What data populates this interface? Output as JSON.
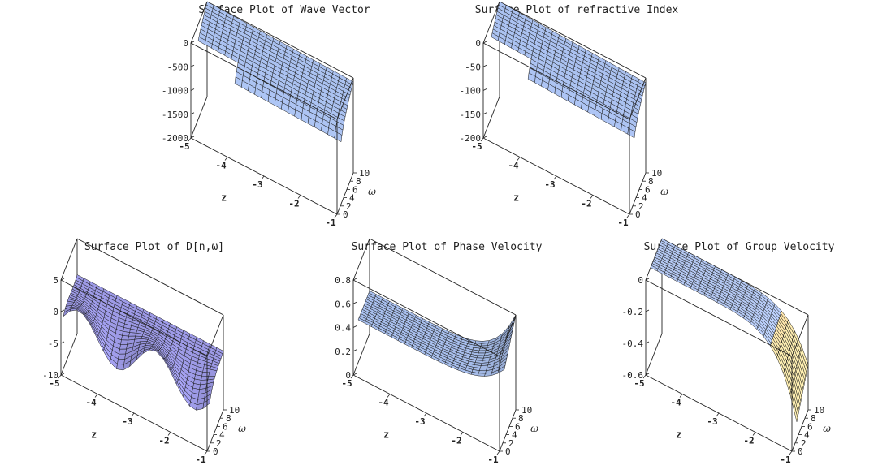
{
  "chart_data": [
    {
      "id": "wave-vector",
      "type": "surface3d",
      "title": "Surface Plot of Wave Vector",
      "xlabel": "z",
      "ylabel": "ω",
      "x_ticks": [
        "-5",
        "-4",
        "-3",
        "-2",
        "-1"
      ],
      "y_ticks": [
        "0",
        "2",
        "4",
        "6",
        "8",
        "10"
      ],
      "z_ticks": [
        "0",
        "-500",
        "-1000",
        "-1500",
        "-2000"
      ],
      "xlim": [
        -5,
        -1
      ],
      "ylim": [
        0,
        10
      ],
      "zlim": [
        -2000,
        0
      ],
      "surface_color": "#a9c0ee"
    },
    {
      "id": "refractive-index",
      "type": "surface3d",
      "title": "Surface Plot of refractive Index",
      "xlabel": "z",
      "ylabel": "ω",
      "x_ticks": [
        "-5",
        "-4",
        "-3",
        "-2",
        "-1"
      ],
      "y_ticks": [
        "0",
        "2",
        "4",
        "6",
        "8",
        "10"
      ],
      "z_ticks": [
        "0",
        "-50",
        "-100",
        "-150",
        "-200"
      ],
      "xlim": [
        -5,
        -1
      ],
      "ylim": [
        0,
        10
      ],
      "zlim": [
        -200,
        0
      ],
      "surface_color": "#a9c0ee"
    },
    {
      "id": "dispersion",
      "type": "surface3d",
      "title": "Surface Plot of D[n,ω]",
      "xlabel": "z",
      "ylabel": "ω",
      "x_ticks": [
        "-5",
        "-4",
        "-3",
        "-2",
        "-1"
      ],
      "y_ticks": [
        "0",
        "2",
        "4",
        "6",
        "8",
        "10"
      ],
      "z_ticks": [
        "5",
        "0",
        "-5",
        "-10"
      ],
      "xlim": [
        -5,
        -1
      ],
      "ylim": [
        0,
        10
      ],
      "zlim": [
        -10,
        5
      ],
      "surface_color": "#9d9ae6"
    },
    {
      "id": "phase-velocity",
      "type": "surface3d",
      "title": "Surface Plot of Phase Velocity",
      "xlabel": "z",
      "ylabel": "ω",
      "x_ticks": [
        "-5",
        "-4",
        "-3",
        "-2",
        "-1"
      ],
      "y_ticks": [
        "0",
        "2",
        "4",
        "6",
        "8",
        "10"
      ],
      "z_ticks": [
        "0.8",
        "0.6",
        "0.4",
        "0.2",
        "0"
      ],
      "xlim": [
        -5,
        -1
      ],
      "ylim": [
        0,
        10
      ],
      "zlim": [
        0,
        0.8
      ],
      "surface_color": "#a9c0ee"
    },
    {
      "id": "group-velocity",
      "type": "surface3d",
      "title": "Surface Plot of Group Velocity",
      "xlabel": "z",
      "ylabel": "ω",
      "x_ticks": [
        "-5",
        "-4",
        "-3",
        "-2",
        "-1"
      ],
      "y_ticks": [
        "0",
        "2",
        "4",
        "6",
        "8",
        "10"
      ],
      "z_ticks": [
        "0",
        "-0.2",
        "-0.4",
        "-0.6"
      ],
      "xlim": [
        -5,
        -1
      ],
      "ylim": [
        0,
        10
      ],
      "zlim": [
        -0.6,
        0
      ],
      "surface_color": "#b4c8f2",
      "edge_color": "#f6d6a0"
    }
  ]
}
